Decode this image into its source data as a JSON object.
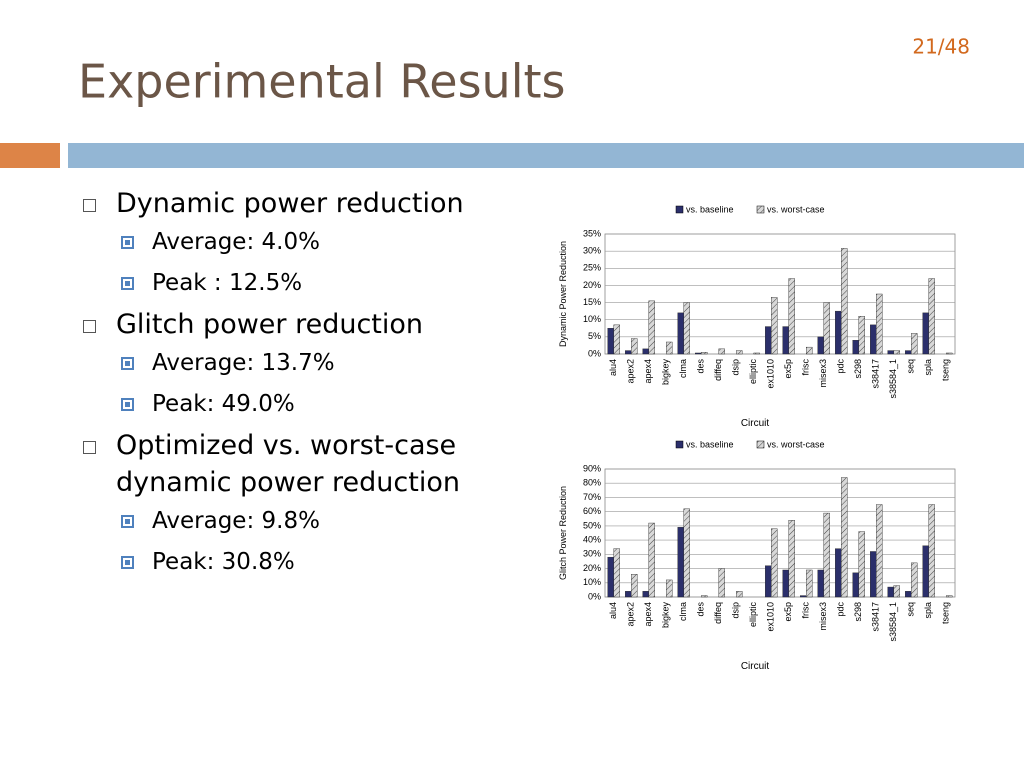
{
  "slide": {
    "title": "Experimental Results",
    "page_number": "21/48",
    "bullets": [
      {
        "text": "Dynamic power reduction",
        "sub": [
          "Average: 4.0%",
          "Peak : 12.5%"
        ]
      },
      {
        "text": "Glitch power reduction",
        "sub": [
          "Average: 13.7%",
          "Peak: 49.0%"
        ]
      },
      {
        "text": "Optimized vs. worst-case dynamic power reduction",
        "sub": [
          "Average: 9.8%",
          "Peak: 30.8%"
        ]
      }
    ]
  },
  "chart_data": [
    {
      "type": "bar",
      "y_label": "Dynamic Power Reduction",
      "x_label": "Circuit",
      "categories": [
        "alu4",
        "apex2",
        "apex4",
        "bigkey",
        "clma",
        "des",
        "diffeq",
        "dsip",
        "elliptic",
        "ex1010",
        "ex5p",
        "frisc",
        "misex3",
        "pdc",
        "s298",
        "s38417",
        "s38584_1",
        "seq",
        "spla",
        "tseng"
      ],
      "series": [
        {
          "name": "vs. baseline",
          "color": "#2b2f6b",
          "pattern": "solid",
          "values": [
            7.5,
            1,
            1.5,
            0,
            12,
            0.3,
            0,
            0,
            0,
            8,
            8,
            0,
            5,
            12.5,
            4,
            8.5,
            1,
            1,
            12,
            0
          ]
        },
        {
          "name": "vs. worst-case",
          "color": "#d8d8d8",
          "pattern": "hatch",
          "values": [
            8.5,
            4.5,
            15.5,
            3.5,
            15,
            0.5,
            1.5,
            1,
            0.3,
            16.5,
            22,
            2,
            15,
            30.8,
            11,
            17.5,
            1,
            6,
            22,
            0.3
          ]
        }
      ],
      "ylim": [
        0,
        35
      ],
      "yticks": [
        {
          "value": 0,
          "label": "0%"
        },
        {
          "value": 5,
          "label": "5%"
        },
        {
          "value": 10,
          "label": "10%"
        },
        {
          "value": 15,
          "label": "15%"
        },
        {
          "value": 20,
          "label": "20%"
        },
        {
          "value": 25,
          "label": "25%"
        },
        {
          "value": 30,
          "label": "30%"
        },
        {
          "value": 35,
          "label": "35%"
        }
      ],
      "grid": true
    },
    {
      "type": "bar",
      "y_label": "Glitch Power Reduction",
      "x_label": "Circuit",
      "categories": [
        "alu4",
        "apex2",
        "apex4",
        "bigkey",
        "clma",
        "des",
        "diffeq",
        "dsip",
        "elliptic",
        "ex1010",
        "ex5p",
        "frisc",
        "misex3",
        "pdc",
        "s298",
        "s38417",
        "s38584_1",
        "seq",
        "spla",
        "tseng"
      ],
      "series": [
        {
          "name": "vs. baseline",
          "color": "#2b2f6b",
          "pattern": "solid",
          "values": [
            28,
            4,
            4,
            0,
            49,
            0,
            0,
            0,
            0,
            22,
            19,
            1,
            19,
            34,
            17,
            32,
            7,
            4,
            36,
            0
          ]
        },
        {
          "name": "vs. worst-case",
          "color": "#d8d8d8",
          "pattern": "hatch",
          "values": [
            34,
            16,
            52,
            12,
            62,
            1,
            20,
            4,
            0,
            48,
            54,
            19,
            59,
            84,
            46,
            65,
            8,
            24,
            65,
            1
          ]
        }
      ],
      "ylim": [
        0,
        90
      ],
      "yticks": [
        {
          "value": 0,
          "label": "0%"
        },
        {
          "value": 10,
          "label": "10%"
        },
        {
          "value": 20,
          "label": "20%"
        },
        {
          "value": 30,
          "label": "30%"
        },
        {
          "value": 40,
          "label": "40%"
        },
        {
          "value": 50,
          "label": "50%"
        },
        {
          "value": 60,
          "label": "60%"
        },
        {
          "value": 70,
          "label": "70%"
        },
        {
          "value": 80,
          "label": "80%"
        },
        {
          "value": 90,
          "label": "90%"
        }
      ],
      "grid": true
    }
  ]
}
